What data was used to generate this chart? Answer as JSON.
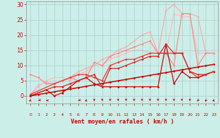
{
  "background_color": "#cceee8",
  "grid_color": "#aacccc",
  "xlabel": "Vent moyen/en rafales ( km/h )",
  "xlim": [
    -0.5,
    23.5
  ],
  "ylim": [
    -2.5,
    31
  ],
  "yticks": [
    0,
    5,
    10,
    15,
    20,
    25,
    30
  ],
  "xticks": [
    0,
    1,
    2,
    3,
    4,
    5,
    6,
    7,
    8,
    9,
    10,
    11,
    12,
    13,
    14,
    15,
    16,
    17,
    18,
    19,
    20,
    21,
    22,
    23
  ],
  "lines": [
    {
      "x": [
        0,
        1,
        2,
        3,
        4,
        5,
        6,
        7,
        8,
        9,
        10,
        11,
        12,
        13,
        14,
        15,
        16,
        17,
        18,
        19,
        20,
        21,
        22,
        23
      ],
      "y": [
        0.5,
        3.5,
        4.5,
        4,
        5,
        6,
        8,
        9,
        10,
        12,
        13,
        15,
        16,
        18,
        20,
        21,
        14,
        28,
        30,
        27,
        27,
        26,
        14,
        14
      ],
      "color": "#ffaaaa",
      "marker": "D",
      "markersize": 1.8,
      "linewidth": 0.9,
      "zorder": 1
    },
    {
      "x": [
        0,
        1,
        2,
        3,
        4,
        5,
        6,
        7,
        8,
        9,
        10,
        11,
        12,
        13,
        14,
        15,
        16,
        17,
        18,
        19,
        20,
        21,
        22,
        23
      ],
      "y": [
        0,
        3,
        5,
        6,
        6,
        5,
        7,
        8,
        10,
        10,
        12,
        13,
        14,
        15,
        15,
        14,
        14,
        14,
        27,
        26,
        26,
        14,
        14,
        14
      ],
      "color": "#ffbbbb",
      "marker": "D",
      "markersize": 1.8,
      "linewidth": 0.9,
      "zorder": 1
    },
    {
      "x": [
        0,
        1,
        2,
        3,
        4,
        5,
        6,
        7,
        8,
        9,
        10,
        11,
        12,
        13,
        14,
        15,
        16,
        17,
        18,
        19,
        20,
        21,
        22,
        23
      ],
      "y": [
        7,
        6,
        4,
        4,
        5,
        6,
        5,
        6,
        11,
        10,
        13,
        14,
        15,
        16,
        17,
        18,
        14,
        14,
        10,
        27,
        27,
        10,
        14,
        14
      ],
      "color": "#ff8888",
      "marker": "D",
      "markersize": 1.8,
      "linewidth": 0.9,
      "zorder": 2
    },
    {
      "x": [
        0,
        1,
        2,
        3,
        4,
        5,
        6,
        7,
        8,
        9,
        10,
        11,
        12,
        13,
        14,
        15,
        16,
        17,
        18,
        19,
        20,
        21,
        22,
        23
      ],
      "y": [
        0,
        0.45,
        0.9,
        1.35,
        1.8,
        2.25,
        2.7,
        3.15,
        3.6,
        4.05,
        4.5,
        4.95,
        5.4,
        5.85,
        6.3,
        6.75,
        7.2,
        7.65,
        8.1,
        8.55,
        9.0,
        9.45,
        9.9,
        10.35
      ],
      "color": "#cc0000",
      "marker": "D",
      "markersize": 1.8,
      "linewidth": 1.1,
      "zorder": 5
    },
    {
      "x": [
        0,
        2,
        3,
        4,
        5,
        6,
        7,
        8,
        9,
        10,
        11,
        12,
        13,
        14,
        15,
        16,
        17,
        18,
        19,
        20,
        21,
        22,
        23
      ],
      "y": [
        0,
        2,
        0,
        1,
        3,
        5,
        6,
        4,
        3,
        3,
        3,
        3,
        3,
        3,
        3,
        3,
        17,
        4,
        8,
        6,
        6,
        7,
        8
      ],
      "color": "#cc0000",
      "marker": "D",
      "markersize": 1.8,
      "linewidth": 0.9,
      "zorder": 4
    },
    {
      "x": [
        0,
        3,
        4,
        5,
        6,
        7,
        8,
        9,
        10,
        11,
        12,
        13,
        14,
        15,
        16,
        17,
        18,
        19,
        20,
        21,
        22,
        23
      ],
      "y": [
        0,
        3,
        3,
        4,
        5,
        6,
        7,
        3,
        9,
        9,
        10,
        11,
        12,
        13,
        13,
        17,
        14,
        14,
        8,
        7,
        7,
        8
      ],
      "color": "#dd2222",
      "marker": "D",
      "markersize": 1.8,
      "linewidth": 0.9,
      "zorder": 4
    },
    {
      "x": [
        0,
        3,
        5,
        6,
        7,
        8,
        9,
        10,
        11,
        12,
        13,
        14,
        15,
        16,
        17,
        18,
        19,
        20,
        21,
        22,
        23
      ],
      "y": [
        0.5,
        4,
        6,
        7,
        7,
        6,
        5,
        10,
        11,
        12,
        12,
        13,
        14,
        14,
        14,
        14,
        14,
        8,
        6,
        7,
        8
      ],
      "color": "#ee3333",
      "marker": "D",
      "markersize": 1.8,
      "linewidth": 0.9,
      "zorder": 3
    }
  ],
  "wind_arrows": {
    "x": [
      0,
      1,
      2,
      6,
      7,
      8,
      9,
      10,
      11,
      12,
      13,
      14,
      15,
      16,
      17,
      18,
      19,
      20,
      21,
      22,
      23
    ],
    "angles": [
      225,
      210,
      180,
      210,
      225,
      270,
      270,
      270,
      270,
      270,
      270,
      270,
      270,
      270,
      270,
      270,
      270,
      270,
      250,
      240,
      220
    ]
  }
}
